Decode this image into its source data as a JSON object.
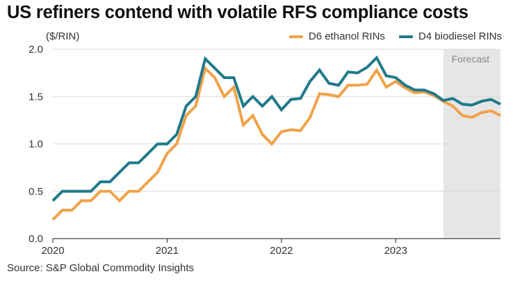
{
  "title": "US refiners contend with volatile RFS compliance costs",
  "source": "Source: S&P Global Commodity Insights",
  "colors": {
    "d6": "#F0A248",
    "d4": "#1F7A8C",
    "forecast_shade": "#E6E6E6",
    "grid": "#D9D9D9",
    "axis": "#444444"
  },
  "chart_data": {
    "type": "line",
    "ylabel": "($/RIN)",
    "ylim": [
      0,
      2.0
    ],
    "yticks": [
      0.0,
      0.5,
      1.0,
      1.5,
      2.0
    ],
    "ytick_labels": [
      "0.0",
      "0.5",
      "1.0",
      "1.5",
      "2.0"
    ],
    "xlim": [
      "2020-01",
      "2023-12"
    ],
    "xticks": [
      "2020-01",
      "2021-01",
      "2022-01",
      "2023-01"
    ],
    "xtick_labels": [
      "2020",
      "2021",
      "2022",
      "2023"
    ],
    "grid": true,
    "legend_position": "top-right",
    "forecast": {
      "label": "Forecast",
      "start": "2023-07",
      "end": "2023-12"
    },
    "x": [
      "2020-01",
      "2020-02",
      "2020-03",
      "2020-04",
      "2020-05",
      "2020-06",
      "2020-07",
      "2020-08",
      "2020-09",
      "2020-10",
      "2020-11",
      "2020-12",
      "2021-01",
      "2021-02",
      "2021-03",
      "2021-04",
      "2021-05",
      "2021-06",
      "2021-07",
      "2021-08",
      "2021-09",
      "2021-10",
      "2021-11",
      "2021-12",
      "2022-01",
      "2022-02",
      "2022-03",
      "2022-04",
      "2022-05",
      "2022-06",
      "2022-07",
      "2022-08",
      "2022-09",
      "2022-10",
      "2022-11",
      "2022-12",
      "2023-01",
      "2023-02",
      "2023-03",
      "2023-04",
      "2023-05",
      "2023-06",
      "2023-07",
      "2023-08",
      "2023-09",
      "2023-10",
      "2023-11",
      "2023-12"
    ],
    "series": [
      {
        "name": "D6 ethanol RINs",
        "color": "#F0A248",
        "values": [
          0.2,
          0.3,
          0.3,
          0.4,
          0.4,
          0.5,
          0.5,
          0.4,
          0.5,
          0.5,
          0.6,
          0.7,
          0.9,
          1.0,
          1.3,
          1.4,
          1.8,
          1.7,
          1.5,
          1.6,
          1.2,
          1.3,
          1.1,
          1.0,
          1.13,
          1.15,
          1.14,
          1.28,
          1.53,
          1.52,
          1.5,
          1.62,
          1.62,
          1.63,
          1.78,
          1.6,
          1.66,
          1.59,
          1.54,
          1.55,
          1.51,
          1.45,
          1.4,
          1.3,
          1.28,
          1.33,
          1.35,
          1.3
        ]
      },
      {
        "name": "D4 biodiesel RINs",
        "color": "#1F7A8C",
        "values": [
          0.4,
          0.5,
          0.5,
          0.5,
          0.5,
          0.6,
          0.6,
          0.7,
          0.8,
          0.8,
          0.9,
          1.0,
          1.0,
          1.1,
          1.4,
          1.5,
          1.9,
          1.8,
          1.7,
          1.7,
          1.4,
          1.5,
          1.4,
          1.5,
          1.36,
          1.47,
          1.48,
          1.66,
          1.78,
          1.64,
          1.62,
          1.76,
          1.75,
          1.81,
          1.91,
          1.72,
          1.7,
          1.62,
          1.57,
          1.57,
          1.53,
          1.46,
          1.48,
          1.42,
          1.41,
          1.45,
          1.47,
          1.42
        ]
      }
    ]
  }
}
